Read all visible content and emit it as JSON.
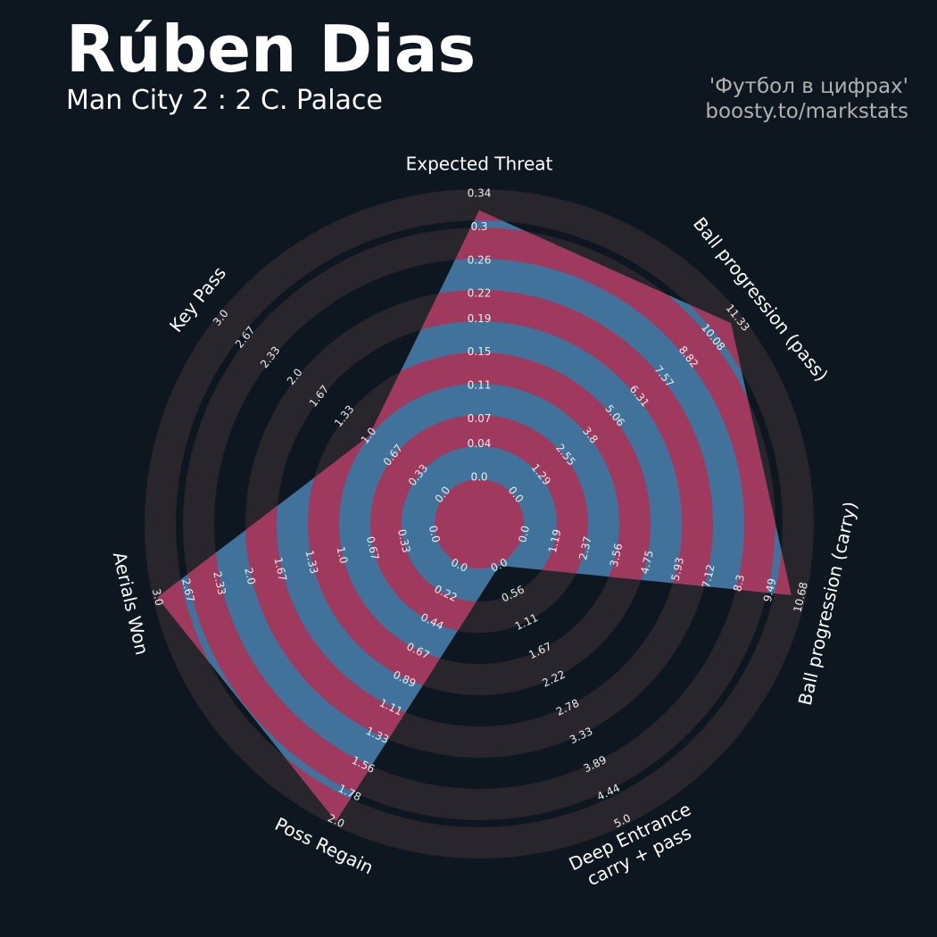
{
  "title": "Rúben Dias",
  "subtitle": "Man City 2 : 2 C. Palace",
  "credits": [
    "'Футбол в цифрах'",
    "boosty.to/markstats"
  ],
  "chart_data": {
    "type": "radar",
    "params": [
      "Expected Threat",
      "Ball progression (pass)",
      "Ball progression (carry)",
      "Deep Entrance\ncarry + pass",
      "Poss Regain",
      "Aerials Won",
      "Key Pass"
    ],
    "values": [
      0.32,
      11.0,
      10.3,
      0,
      2,
      3,
      1
    ],
    "ranges": [
      [
        0,
        0.34
      ],
      [
        0,
        11.33
      ],
      [
        0,
        10.68
      ],
      [
        0,
        5
      ],
      [
        0,
        2
      ],
      [
        0,
        3
      ],
      [
        0,
        3
      ]
    ],
    "ticks": [
      [
        {
          "value": 0,
          "label": "0.0"
        },
        0.04,
        0.07,
        0.11,
        0.15,
        0.19,
        0.22,
        0.26,
        0.3,
        0.34
      ],
      [
        {
          "value": 0,
          "label": "0.0"
        },
        1.29,
        2.55,
        3.8,
        5.06,
        6.31,
        7.57,
        8.82,
        10.08,
        11.33
      ],
      [
        {
          "value": 0,
          "label": "0.0"
        },
        1.19,
        2.37,
        3.56,
        4.75,
        5.93,
        7.12,
        8.3,
        9.49,
        10.68
      ],
      [
        {
          "value": 0,
          "label": "0.0"
        },
        0.56,
        1.11,
        1.67,
        2.22,
        2.78,
        3.33,
        3.89,
        4.44,
        {
          "value": 5,
          "label": "5.0"
        }
      ],
      [
        {
          "value": 0,
          "label": "0.0"
        },
        0.22,
        0.44,
        0.67,
        0.89,
        1.11,
        1.33,
        1.56,
        1.78,
        {
          "value": 2,
          "label": "2.0"
        }
      ],
      [
        {
          "value": 0,
          "label": "0.0"
        },
        0.33,
        0.67,
        {
          "value": 1,
          "label": "1.0"
        },
        1.33,
        1.67,
        {
          "value": 2,
          "label": "2.0"
        },
        2.33,
        2.67,
        {
          "value": 3,
          "label": "3.0"
        }
      ],
      [
        {
          "value": 0,
          "label": "0.0"
        },
        0.33,
        0.67,
        {
          "value": 1,
          "label": "1.0"
        },
        1.33,
        1.67,
        {
          "value": 2,
          "label": "2.0"
        },
        2.33,
        2.67,
        {
          "value": 3,
          "label": "3.0"
        }
      ]
    ],
    "color": "#41729c",
    "alt_color": "#a0395e",
    "ring_color": "#28252c"
  }
}
